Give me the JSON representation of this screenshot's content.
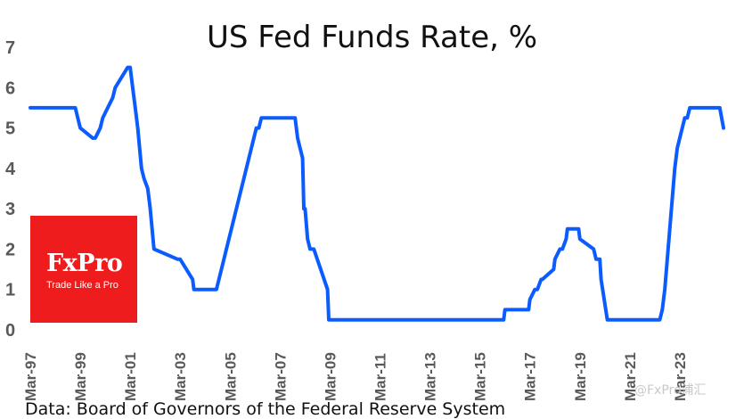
{
  "chart_data": {
    "type": "line",
    "title": "US Fed Funds Rate, %",
    "xlabel": "",
    "ylabel": "",
    "ylim": [
      0,
      7
    ],
    "yticks": [
      0,
      1,
      2,
      3,
      4,
      5,
      6,
      7
    ],
    "xlim": [
      1997.0,
      2024.75
    ],
    "xtick_labels": [
      "Mar-97",
      "Mar-99",
      "Mar-01",
      "Mar-03",
      "Mar-05",
      "Mar-07",
      "Mar-09",
      "Mar-11",
      "Mar-13",
      "Mar-15",
      "Mar-17",
      "Mar-19",
      "Mar-21",
      "Mar-23"
    ],
    "grid": false,
    "legend": "none",
    "line_color": "#0b5cff",
    "series": [
      {
        "x": [
          1997.0,
          1998.8,
          1998.9,
          1999.0,
          1999.5,
          1999.6,
          1999.8,
          1999.9,
          2000.1,
          2000.3,
          2000.4,
          2000.9,
          2001.0,
          2001.1,
          2001.2,
          2001.3,
          2001.45,
          2001.55,
          2001.7,
          2001.8,
          2001.95,
          2002.9,
          2003.0,
          2003.5,
          2003.55,
          2004.45,
          2004.55,
          2004.65,
          2004.75,
          2004.85,
          2004.95,
          2005.05,
          2005.15,
          2005.25,
          2005.35,
          2005.45,
          2005.55,
          2005.65,
          2005.75,
          2005.85,
          2005.95,
          2006.05,
          2006.15,
          2006.25,
          2006.35,
          2006.45,
          2006.55,
          2007.6,
          2007.7,
          2007.8,
          2007.9,
          2007.95,
          2008.0,
          2008.1,
          2008.2,
          2008.3,
          2008.35,
          2008.9,
          2008.95,
          2009.0,
          2015.95,
          2016.0,
          2016.95,
          2017.0,
          2017.2,
          2017.3,
          2017.45,
          2017.5,
          2017.95,
          2018.0,
          2018.2,
          2018.3,
          2018.45,
          2018.5,
          2018.7,
          2018.75,
          2018.95,
          2019.0,
          2019.55,
          2019.65,
          2019.8,
          2019.85,
          2020.1,
          2020.15,
          2020.2,
          2020.25,
          2022.2,
          2022.3,
          2022.4,
          2022.5,
          2022.6,
          2022.7,
          2022.8,
          2022.9,
          2023.0,
          2023.1,
          2023.2,
          2023.3,
          2023.4,
          2023.5,
          2023.6,
          2024.6,
          2024.75
        ],
        "y": [
          5.5,
          5.5,
          5.25,
          5.0,
          4.75,
          4.75,
          5.0,
          5.25,
          5.5,
          5.75,
          6.0,
          6.5,
          6.5,
          6.0,
          5.5,
          5.0,
          4.0,
          3.75,
          3.5,
          3.0,
          2.0,
          1.75,
          1.75,
          1.25,
          1.0,
          1.0,
          1.25,
          1.5,
          1.75,
          2.0,
          2.25,
          2.5,
          2.75,
          3.0,
          3.25,
          3.5,
          3.75,
          4.0,
          4.25,
          4.5,
          4.75,
          5.0,
          5.0,
          5.25,
          5.25,
          5.25,
          5.25,
          5.25,
          4.75,
          4.5,
          4.25,
          3.0,
          3.0,
          2.25,
          2.0,
          2.0,
          2.0,
          1.0,
          0.25,
          0.25,
          0.25,
          0.5,
          0.5,
          0.75,
          1.0,
          1.0,
          1.25,
          1.25,
          1.5,
          1.75,
          2.0,
          2.0,
          2.25,
          2.5,
          2.5,
          2.5,
          2.5,
          2.25,
          2.0,
          1.75,
          1.75,
          1.25,
          0.25,
          0.25,
          0.25,
          0.25,
          0.25,
          0.5,
          1.0,
          1.75,
          2.5,
          3.25,
          4.0,
          4.5,
          4.75,
          5.0,
          5.25,
          5.25,
          5.5,
          5.5,
          5.5,
          5.5,
          5.0
        ]
      }
    ]
  },
  "logo": {
    "name": "FxPro",
    "tagline": "Trade Like a Pro",
    "color": "#ee1c1c"
  },
  "source_note": "Data: Board of Governors of the Federal Reserve System",
  "watermark": "@FxPro浦汇"
}
